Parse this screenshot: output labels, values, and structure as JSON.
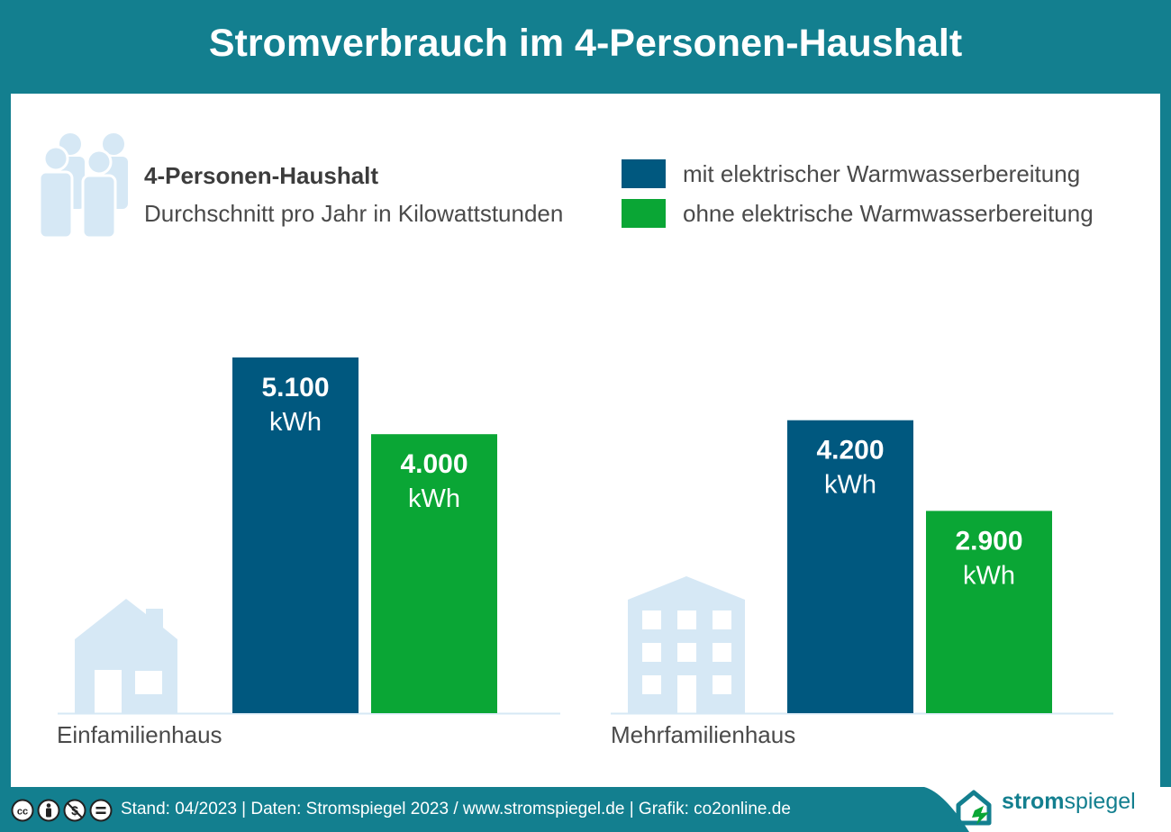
{
  "title": "Stromverbrauch im 4-Personen-Haushalt",
  "legend": {
    "heading": "4-Personen-Haushalt",
    "subheading": "Durchschnitt pro Jahr in Kilowattstunden",
    "items": [
      {
        "label": "mit elektrischer Warmwasserbereitung",
        "color": "#00587f"
      },
      {
        "label": "ohne elektrische Warmwasserbereitung",
        "color": "#0aa635"
      }
    ]
  },
  "chart_data": {
    "type": "bar",
    "unit": "kWh",
    "categories": [
      "Einfamilienhaus",
      "Mehrfamilienhaus"
    ],
    "series": [
      {
        "name": "mit elektrischer Warmwasserbereitung",
        "values": [
          5100,
          4200
        ],
        "labels": [
          "5.100",
          "4.200"
        ],
        "color": "#00587f"
      },
      {
        "name": "ohne elektrische Warmwasserbereitung",
        "values": [
          4000,
          2900
        ],
        "labels": [
          "4.000",
          "2.900"
        ],
        "color": "#0aa635"
      }
    ],
    "icons": [
      "house-icon",
      "apartment-building-icon"
    ],
    "grid": false
  },
  "footer": {
    "text": "Stand: 04/2023  |  Daten: Stromspiegel 2023 / www.stromspiegel.de  |  Grafik: co2online.de",
    "license_icons": [
      "cc-icon",
      "by-icon",
      "nc-icon",
      "nd-icon"
    ]
  },
  "logo": {
    "bold": "strom",
    "regular": "spiegel"
  },
  "colors": {
    "background": "#137f8f",
    "panel": "#ffffff",
    "icon_light": "#d6e8f5",
    "text": "#4a4a4a"
  }
}
